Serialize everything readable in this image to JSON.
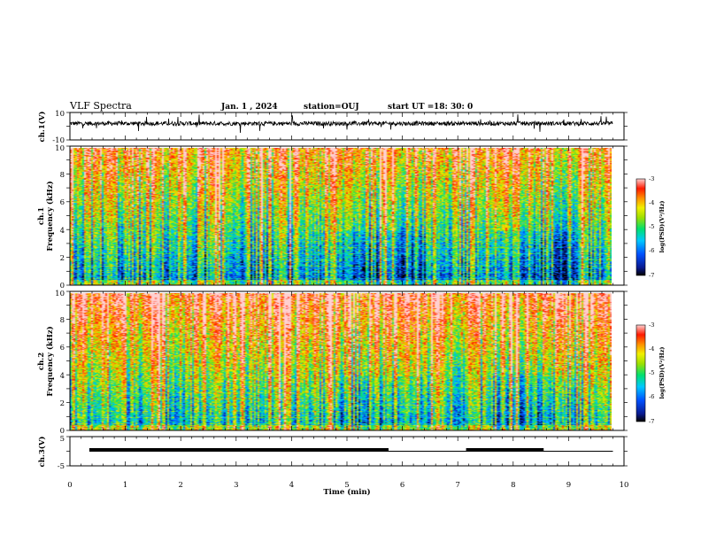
{
  "chart_data": [
    {
      "type": "line",
      "title": "VLF Spectra",
      "date": "Jan. 1 , 2024",
      "station_text": "station=OUJ",
      "start_label": "start UT =",
      "start_time": "18: 30: 0",
      "ylabel": "ch.1(V)",
      "ylim": [
        -10,
        10
      ],
      "yticks": [
        "10",
        "-10"
      ],
      "x_range": [
        0,
        10
      ],
      "series": [
        {
          "description": "noisy waveform centered near +2 V with spikes",
          "baseline": 2,
          "noise_amplitude": 1.5
        }
      ]
    },
    {
      "type": "heatmap",
      "ylabel_line1": "ch.1",
      "ylabel_line2": "Frequency (kHz)",
      "ylim": [
        0,
        10
      ],
      "yticks": [
        "0",
        "2",
        "4",
        "6",
        "8",
        "10"
      ],
      "x_range": [
        0,
        10
      ],
      "colorbar": {
        "range": [
          -7,
          -3
        ],
        "ticks": [
          "-3",
          "-4",
          "-5",
          "-6",
          "-7"
        ],
        "label": "log(PSD)(V²/Hz)"
      }
    },
    {
      "type": "heatmap",
      "ylabel_line1": "ch.2",
      "ylabel_line2": "Frequency (kHz)",
      "ylim": [
        0,
        10
      ],
      "yticks": [
        "0",
        "2",
        "4",
        "6",
        "8",
        "10"
      ],
      "x_range": [
        0,
        10
      ],
      "colorbar": {
        "range": [
          -7,
          -3
        ],
        "ticks": [
          "-3",
          "-4",
          "-5",
          "-6",
          "-7"
        ],
        "label": "log(PSD)(V²/Hz)"
      }
    },
    {
      "type": "line",
      "ylabel": "ch.3(V)",
      "ylim": [
        -5,
        5
      ],
      "yticks": [
        "5",
        "-5"
      ],
      "baseline_value": 0,
      "thick_segments": [
        [
          0.35,
          5.75
        ],
        [
          7.15,
          8.55
        ]
      ],
      "xlabel": "Time (min)",
      "xlim": [
        0,
        10
      ],
      "xticks": [
        "0",
        "1",
        "2",
        "3",
        "4",
        "5",
        "6",
        "7",
        "8",
        "9",
        "10"
      ]
    }
  ]
}
